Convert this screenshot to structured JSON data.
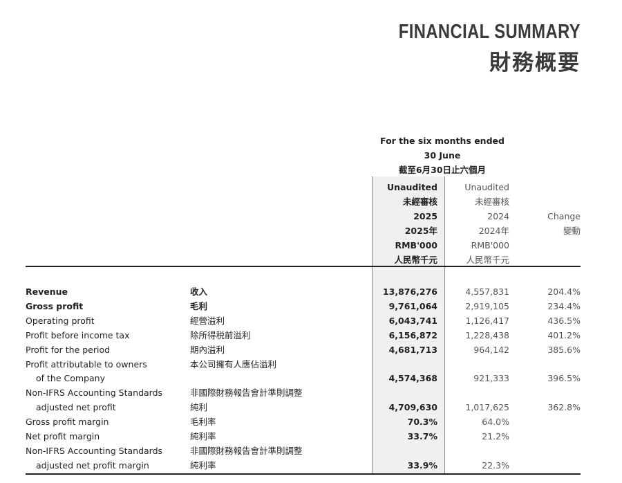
{
  "title": {
    "en": "FINANCIAL SUMMARY",
    "zh": "財務概要"
  },
  "period": {
    "line1": "For the six months ended",
    "line2": "30 June",
    "line3": "截至6月30日止六個月"
  },
  "columns": {
    "current": [
      "Unaudited",
      "未經審核",
      "2025",
      "2025年",
      "RMB'000",
      "人民幣千元"
    ],
    "prior": [
      "Unaudited",
      "未經審核",
      "2024",
      "2024年",
      "RMB'000",
      "人民幣千元"
    ],
    "change": [
      "Change",
      "變動"
    ]
  },
  "rows": [
    {
      "en": "Revenue",
      "zh": "收入",
      "cur": "13,876,276",
      "prev": "4,557,831",
      "chg": "204.4%",
      "bold": true
    },
    {
      "en": "Gross profit",
      "zh": "毛利",
      "cur": "9,761,064",
      "prev": "2,919,105",
      "chg": "234.4%",
      "bold": true
    },
    {
      "en": "Operating profit",
      "zh": "經營溢利",
      "cur": "6,043,741",
      "prev": "1,126,417",
      "chg": "436.5%"
    },
    {
      "en": "Profit before income tax",
      "zh": "除所得税前溢利",
      "cur": "6,156,872",
      "prev": "1,228,438",
      "chg": "401.2%"
    },
    {
      "en": "Profit for the period",
      "zh": "期內溢利",
      "cur": "4,681,713",
      "prev": "964,142",
      "chg": "385.6%"
    },
    {
      "en": "Profit attributable to owners",
      "zh": "本公司擁有人應佔溢利",
      "cur": "",
      "prev": "",
      "chg": ""
    },
    {
      "en": "of the Company",
      "zh": "",
      "cur": "4,574,368",
      "prev": "921,333",
      "chg": "396.5%",
      "indent": true
    },
    {
      "en": "Non-IFRS Accounting Standards",
      "zh": "非國際財務報告會計準則調整",
      "cur": "",
      "prev": "",
      "chg": ""
    },
    {
      "en": "adjusted net profit",
      "zh": "純利",
      "cur": "4,709,630",
      "prev": "1,017,625",
      "chg": "362.8%",
      "indent": true
    },
    {
      "en": "Gross profit margin",
      "zh": "毛利率",
      "cur": "70.3%",
      "prev": "64.0%",
      "chg": ""
    },
    {
      "en": "Net profit margin",
      "zh": "純利率",
      "cur": "33.7%",
      "prev": "21.2%",
      "chg": ""
    },
    {
      "en": "Non-IFRS Accounting Standards",
      "zh": "非國際財務報告會計準則調整",
      "cur": "",
      "prev": "",
      "chg": ""
    },
    {
      "en": "adjusted net profit margin",
      "zh": "純利率",
      "cur": "33.9%",
      "prev": "22.3%",
      "chg": "",
      "indent": true
    }
  ]
}
